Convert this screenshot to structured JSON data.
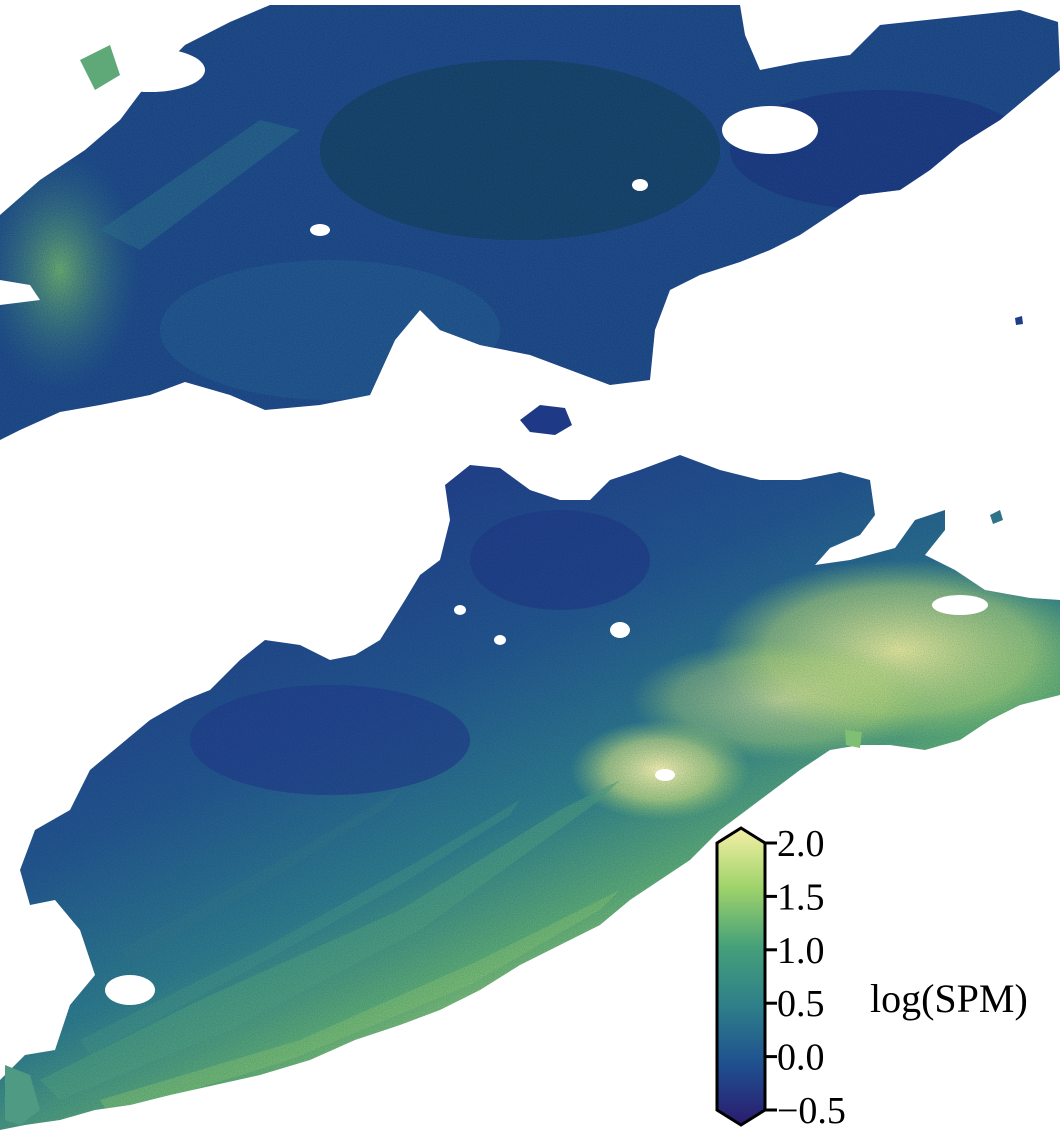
{
  "map": {
    "variable_label": "log(SPM)",
    "colormap": "haline-like (dark navy → blue → teal → green → pale yellow)",
    "extend": "both",
    "colorbar_min": -0.5,
    "colorbar_max": 2.0,
    "colors": {
      "low": "#2a1b6e",
      "mid_low": "#1f4f8f",
      "mid": "#2e7f8a",
      "mid_high": "#5fb36a",
      "high": "#e6e88f",
      "top": "#fbf4b8",
      "land": "#ffffff"
    }
  },
  "colorbar": {
    "ticks": [
      {
        "value": 2.0,
        "label": "2.0"
      },
      {
        "value": 1.5,
        "label": "1.5"
      },
      {
        "value": 1.0,
        "label": "1.0"
      },
      {
        "value": 0.5,
        "label": "0.5"
      },
      {
        "value": 0.0,
        "label": "0.0"
      },
      {
        "value": -0.5,
        "label": "−0.5"
      }
    ]
  }
}
